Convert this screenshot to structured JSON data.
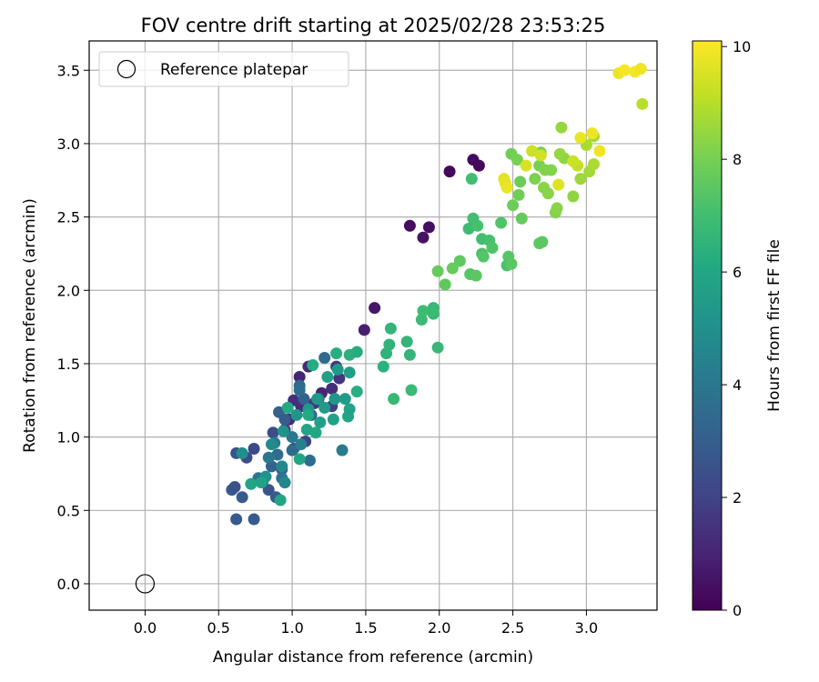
{
  "chart_data": {
    "type": "scatter",
    "title": "FOV centre drift starting at 2025/02/28 23:53:25",
    "xlabel": "Angular distance from reference (arcmin)",
    "ylabel": "Rotation from reference (arcmin)",
    "xlim": [
      -0.38,
      3.48
    ],
    "ylim": [
      -0.18,
      3.7
    ],
    "x_ticks": [
      "0.0",
      "0.5",
      "1.0",
      "1.5",
      "2.0",
      "2.5",
      "3.0"
    ],
    "y_ticks": [
      "0.0",
      "0.5",
      "1.0",
      "1.5",
      "2.0",
      "2.5",
      "3.0",
      "3.5"
    ],
    "grid": true,
    "legend": {
      "position": "top-left",
      "entries": [
        "Reference platepar"
      ]
    },
    "reference_point": {
      "x": 0.0,
      "y": 0.0,
      "marker": "hollow-circle"
    },
    "colorbar": {
      "label": "Hours from first FF file",
      "range": [
        0,
        10.1
      ],
      "ticks": [
        "0",
        "2",
        "4",
        "6",
        "8",
        "10"
      ],
      "colormap": "viridis"
    },
    "points": [
      [
        2.07,
        2.81,
        0.2
      ],
      [
        2.23,
        2.89,
        0.3
      ],
      [
        2.27,
        2.85,
        0.2
      ],
      [
        1.8,
        2.44,
        0.3
      ],
      [
        1.93,
        2.43,
        0.4
      ],
      [
        1.89,
        2.36,
        0.5
      ],
      [
        1.56,
        1.88,
        0.6
      ],
      [
        1.49,
        1.73,
        0.9
      ],
      [
        1.05,
        1.41,
        1.0
      ],
      [
        1.11,
        1.48,
        1.2
      ],
      [
        1.2,
        1.3,
        1.0
      ],
      [
        1.27,
        1.33,
        1.3
      ],
      [
        1.32,
        1.4,
        1.5
      ],
      [
        1.01,
        1.25,
        1.4
      ],
      [
        1.06,
        1.21,
        1.3
      ],
      [
        1.15,
        1.23,
        1.6
      ],
      [
        0.98,
        1.12,
        1.2
      ],
      [
        1.3,
        1.48,
        1.7
      ],
      [
        0.95,
        1.05,
        1.8
      ],
      [
        1.09,
        0.97,
        2.0
      ],
      [
        1.27,
        1.21,
        1.9
      ],
      [
        1.01,
        0.92,
        2.2
      ],
      [
        0.87,
        1.03,
        2.4
      ],
      [
        0.74,
        0.92,
        2.2
      ],
      [
        0.69,
        0.86,
        2.4
      ],
      [
        0.62,
        0.89,
        2.6
      ],
      [
        0.59,
        0.64,
        2.8
      ],
      [
        0.61,
        0.66,
        2.5
      ],
      [
        0.66,
        0.59,
        2.9
      ],
      [
        0.62,
        0.44,
        2.8
      ],
      [
        0.74,
        0.44,
        2.9
      ],
      [
        0.84,
        0.64,
        2.7
      ],
      [
        0.89,
        0.59,
        2.9
      ],
      [
        0.8,
        0.7,
        3.0
      ],
      [
        0.86,
        0.8,
        3.2
      ],
      [
        0.93,
        0.78,
        3.0
      ],
      [
        0.91,
        1.17,
        3.1
      ],
      [
        0.95,
        1.12,
        2.9
      ],
      [
        1.08,
        1.26,
        3.1
      ],
      [
        1.13,
        1.15,
        3.3
      ],
      [
        1.05,
        1.35,
        3.4
      ],
      [
        1.05,
        1.32,
        3.6
      ],
      [
        1.22,
        1.54,
        3.5
      ],
      [
        1.18,
        1.26,
        3.7
      ],
      [
        1.0,
        0.91,
        3.5
      ],
      [
        0.9,
        0.88,
        3.6
      ],
      [
        0.93,
        0.72,
        3.8
      ],
      [
        0.77,
        0.72,
        3.9
      ],
      [
        0.84,
        0.86,
        4.0
      ],
      [
        0.88,
        0.96,
        4.1
      ],
      [
        1.0,
        1.0,
        4.0
      ],
      [
        1.12,
        0.84,
        3.6
      ],
      [
        1.34,
        0.91,
        4.2
      ],
      [
        0.95,
        0.69,
        4.6
      ],
      [
        1.06,
        0.95,
        4.4
      ],
      [
        0.93,
        0.8,
        4.7
      ],
      [
        0.86,
        0.95,
        4.8
      ],
      [
        0.66,
        0.89,
        5.0
      ],
      [
        0.82,
        0.73,
        5.1
      ],
      [
        0.94,
        1.04,
        5.1
      ],
      [
        1.03,
        1.15,
        5.2
      ],
      [
        1.11,
        1.19,
        5.3
      ],
      [
        1.17,
        1.26,
        5.4
      ],
      [
        1.22,
        1.2,
        5.5
      ],
      [
        1.29,
        1.26,
        5.3
      ],
      [
        1.36,
        1.26,
        5.5
      ],
      [
        1.39,
        1.44,
        5.6
      ],
      [
        1.31,
        1.46,
        5.4
      ],
      [
        1.24,
        1.41,
        5.7
      ],
      [
        1.19,
        1.1,
        5.7
      ],
      [
        1.28,
        1.12,
        5.8
      ],
      [
        1.38,
        1.14,
        5.9
      ],
      [
        1.39,
        1.19,
        5.8
      ],
      [
        1.1,
        1.05,
        5.8
      ],
      [
        1.16,
        1.03,
        6.0
      ],
      [
        1.05,
        0.85,
        6.0
      ],
      [
        0.92,
        0.57,
        5.9
      ],
      [
        0.72,
        0.68,
        5.9
      ],
      [
        0.79,
        0.69,
        5.8
      ],
      [
        0.97,
        1.2,
        6.1
      ],
      [
        1.11,
        1.15,
        6.1
      ],
      [
        1.14,
        1.49,
        6.2
      ],
      [
        1.3,
        1.57,
        6.3
      ],
      [
        1.39,
        1.56,
        6.4
      ],
      [
        1.44,
        1.58,
        6.2
      ],
      [
        1.44,
        1.31,
        6.3
      ],
      [
        1.62,
        1.48,
        6.4
      ],
      [
        1.64,
        1.57,
        6.5
      ],
      [
        1.66,
        1.63,
        6.5
      ],
      [
        1.78,
        1.65,
        6.6
      ],
      [
        1.67,
        1.74,
        6.6
      ],
      [
        1.69,
        1.26,
        6.7
      ],
      [
        1.8,
        1.56,
        6.6
      ],
      [
        1.81,
        1.32,
        6.8
      ],
      [
        1.88,
        1.8,
        6.8
      ],
      [
        1.89,
        1.86,
        6.9
      ],
      [
        1.96,
        1.88,
        6.7
      ],
      [
        1.96,
        1.84,
        6.8
      ],
      [
        1.99,
        1.61,
        6.7
      ],
      [
        2.2,
        2.42,
        6.9
      ],
      [
        2.23,
        2.49,
        7.0
      ],
      [
        2.22,
        2.76,
        7.0
      ],
      [
        2.26,
        2.44,
        7.1
      ],
      [
        2.29,
        2.25,
        7.2
      ],
      [
        2.29,
        2.35,
        7.0
      ],
      [
        2.34,
        2.34,
        7.1
      ],
      [
        2.36,
        2.29,
        7.3
      ],
      [
        2.3,
        2.23,
        7.4
      ],
      [
        2.42,
        2.46,
        7.3
      ],
      [
        2.47,
        2.23,
        7.4
      ],
      [
        2.46,
        2.17,
        7.2
      ],
      [
        2.49,
        2.18,
        7.5
      ],
      [
        2.21,
        2.11,
        7.4
      ],
      [
        2.25,
        2.1,
        7.5
      ],
      [
        2.14,
        2.2,
        7.6
      ],
      [
        2.09,
        2.15,
        7.7
      ],
      [
        2.04,
        2.04,
        7.6
      ],
      [
        1.99,
        2.13,
        7.7
      ],
      [
        2.56,
        2.49,
        7.7
      ],
      [
        2.5,
        2.58,
        7.8
      ],
      [
        2.54,
        2.65,
        7.9
      ],
      [
        2.55,
        2.74,
        7.8
      ],
      [
        2.68,
        2.32,
        7.6
      ],
      [
        2.7,
        2.33,
        7.5
      ],
      [
        2.49,
        2.93,
        7.9
      ],
      [
        2.53,
        2.89,
        8.0
      ],
      [
        2.65,
        2.76,
        8.1
      ],
      [
        2.68,
        2.85,
        8.0
      ],
      [
        2.69,
        2.94,
        8.1
      ],
      [
        2.72,
        2.82,
        8.2
      ],
      [
        2.76,
        2.82,
        8.2
      ],
      [
        2.71,
        2.7,
        8.3
      ],
      [
        2.74,
        2.66,
        8.3
      ],
      [
        2.79,
        2.53,
        8.2
      ],
      [
        2.8,
        2.56,
        8.3
      ],
      [
        2.85,
        2.9,
        8.4
      ],
      [
        2.82,
        2.93,
        8.5
      ],
      [
        2.83,
        3.11,
        8.5
      ],
      [
        2.91,
        2.64,
        8.4
      ],
      [
        2.96,
        2.76,
        8.6
      ],
      [
        3.02,
        2.81,
        8.7
      ],
      [
        3.05,
        2.86,
        8.8
      ],
      [
        3.05,
        3.05,
        8.7
      ],
      [
        3.0,
        2.99,
        8.8
      ],
      [
        3.38,
        3.27,
        9.0
      ],
      [
        2.94,
        2.85,
        9.2
      ],
      [
        2.91,
        2.88,
        9.3
      ],
      [
        2.63,
        2.95,
        9.3
      ],
      [
        2.69,
        2.92,
        9.4
      ],
      [
        2.59,
        2.85,
        9.5
      ],
      [
        2.45,
        2.73,
        9.6
      ],
      [
        2.44,
        2.76,
        9.7
      ],
      [
        2.46,
        2.7,
        9.8
      ],
      [
        2.81,
        2.72,
        9.6
      ],
      [
        2.96,
        3.04,
        9.8
      ],
      [
        3.04,
        3.07,
        9.9
      ],
      [
        3.09,
        2.95,
        9.9
      ],
      [
        3.22,
        3.48,
        9.8
      ],
      [
        3.26,
        3.5,
        10.0
      ],
      [
        3.33,
        3.49,
        10.0
      ],
      [
        3.37,
        3.51,
        9.9
      ]
    ]
  }
}
